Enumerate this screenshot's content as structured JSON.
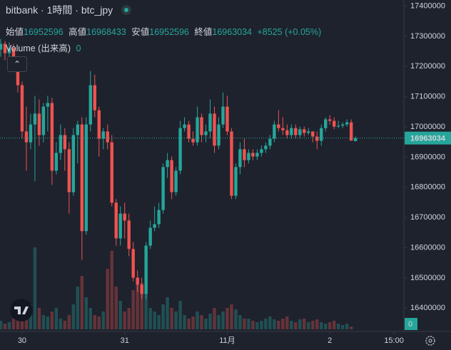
{
  "chart_data": {
    "type": "candlestick",
    "title": "bitbank · 1時間 · btc_jpy",
    "ohlc_labels": [
      "始値",
      "高値",
      "安値",
      "終値"
    ],
    "change_label": "+8525 (+0.05%)",
    "volume_title": "Volume (出来高)",
    "up_color": "#26a69a",
    "down_color": "#ef5350",
    "grid": false,
    "ylim": [
      16330000,
      17420000
    ],
    "yticks": [
      17400000,
      17300000,
      17200000,
      17100000,
      17000000,
      16900000,
      16800000,
      16700000,
      16600000,
      16500000,
      16400000
    ],
    "xticks": [
      {
        "value": 5,
        "label": "30"
      },
      {
        "value": 29,
        "label": "31"
      },
      {
        "value": 53,
        "label": "11月"
      },
      {
        "value": 77,
        "label": "2"
      },
      {
        "value": 92,
        "label": "15:00"
      }
    ],
    "open": [
      17256000,
      17275000,
      17244000,
      17261000,
      17213000,
      17138000,
      16985000,
      16949000,
      17008000,
      17044000,
      16973000,
      17067000,
      17079000,
      16855000,
      16914000,
      16973000,
      16926000,
      16784000,
      16973000,
      17008000,
      16655000,
      17008000,
      17138000,
      17055000,
      16961000,
      16985000,
      16949000,
      16749000,
      16631000,
      16713000,
      16690000,
      16596000,
      16501000,
      16478000,
      16447000,
      16607000,
      16666000,
      16678000,
      16725000,
      16867000,
      16890000,
      16784000,
      16855000,
      16996000,
      17008000,
      16961000,
      16949000,
      17032000,
      16973000,
      16985000,
      17044000,
      16938000,
      17008000,
      17067000,
      16985000,
      16772000,
      16867000,
      16926000,
      16890000,
      16914000,
      16902000,
      16914000,
      16926000,
      16938000,
      16961000,
      17008000,
      16996000,
      16989000,
      16973000,
      16996000,
      16973000,
      16992000,
      16980000,
      16985000,
      16968000,
      16954000,
      16996000,
      17025000,
      17020000,
      17001000,
      17004000,
      17008000,
      17015000,
      16952596
    ],
    "high": [
      17291000,
      17284000,
      17280000,
      17275000,
      17232000,
      17150000,
      17067000,
      17044000,
      17103000,
      17091000,
      17079000,
      17103000,
      17096000,
      16949000,
      17008000,
      16996000,
      16949000,
      16996000,
      17020000,
      17032000,
      17032000,
      17185000,
      17173000,
      17067000,
      16996000,
      17008000,
      16973000,
      16761000,
      16737000,
      16749000,
      16713000,
      16619000,
      16525000,
      16501000,
      16619000,
      16690000,
      16737000,
      16749000,
      16879000,
      16914000,
      16902000,
      16867000,
      17020000,
      17032000,
      17020000,
      16985000,
      17067000,
      17044000,
      17008000,
      17091000,
      17067000,
      17032000,
      17114000,
      17103000,
      16996000,
      16879000,
      16949000,
      16961000,
      16926000,
      16926000,
      16926000,
      16938000,
      16949000,
      16973000,
      17020000,
      17055000,
      17032000,
      17008000,
      17008000,
      17008000,
      17001000,
      17001000,
      16996000,
      16985000,
      16985000,
      17008000,
      17032000,
      17039000,
      17032000,
      17020000,
      17015000,
      17025000,
      17025000,
      16968433
    ],
    "low": [
      17232000,
      17221000,
      17209000,
      17185000,
      17114000,
      16961000,
      16855000,
      16926000,
      16820000,
      16938000,
      16949000,
      16985000,
      16808000,
      16843000,
      16890000,
      16855000,
      16713000,
      16772000,
      16879000,
      16560000,
      16643000,
      16985000,
      17032000,
      16902000,
      16926000,
      16926000,
      16737000,
      16607000,
      16607000,
      16631000,
      16572000,
      16489000,
      16454000,
      16430000,
      16430000,
      16596000,
      16655000,
      16666000,
      16713000,
      16831000,
      16761000,
      16772000,
      16843000,
      16985000,
      16949000,
      16938000,
      16938000,
      16949000,
      16949000,
      16961000,
      16914000,
      16926000,
      16996000,
      16973000,
      16761000,
      16761000,
      16843000,
      16867000,
      16879000,
      16890000,
      16890000,
      16902000,
      16914000,
      16926000,
      16949000,
      16985000,
      16973000,
      16961000,
      16961000,
      16961000,
      16961000,
      16968000,
      16973000,
      16949000,
      16926000,
      16938000,
      16985000,
      17008000,
      16992000,
      16996000,
      16996000,
      17001000,
      16954000,
      16952596
    ],
    "close": [
      17275000,
      17244000,
      17261000,
      17213000,
      17138000,
      16985000,
      16949000,
      17008000,
      17044000,
      16973000,
      17067000,
      17079000,
      16855000,
      16914000,
      16973000,
      16926000,
      16784000,
      16973000,
      17008000,
      16655000,
      17008000,
      17138000,
      17055000,
      16961000,
      16985000,
      16949000,
      16749000,
      16631000,
      16713000,
      16690000,
      16596000,
      16501000,
      16478000,
      16447000,
      16607000,
      16666000,
      16678000,
      16725000,
      16867000,
      16890000,
      16784000,
      16855000,
      16996000,
      17008000,
      16961000,
      16949000,
      17032000,
      16973000,
      16985000,
      17044000,
      16938000,
      17008000,
      17067000,
      16985000,
      16772000,
      16867000,
      16926000,
      16890000,
      16914000,
      16902000,
      16914000,
      16926000,
      16938000,
      16961000,
      17008000,
      16996000,
      16989000,
      16973000,
      16996000,
      16973000,
      16992000,
      16980000,
      16985000,
      16968000,
      16954000,
      16996000,
      17025000,
      17020000,
      17001000,
      17004000,
      17008000,
      17015000,
      16954509,
      16963034
    ],
    "volume": [
      12,
      8,
      10,
      15,
      25,
      40,
      30,
      35,
      115,
      30,
      20,
      18,
      25,
      30,
      15,
      12,
      20,
      35,
      60,
      75,
      45,
      30,
      20,
      18,
      25,
      85,
      110,
      60,
      40,
      25,
      30,
      55,
      70,
      65,
      50,
      30,
      25,
      20,
      35,
      45,
      30,
      25,
      40,
      20,
      15,
      18,
      25,
      20,
      15,
      22,
      30,
      20,
      25,
      30,
      35,
      28,
      20,
      15,
      15,
      12,
      10,
      12,
      15,
      18,
      14,
      12,
      15,
      18,
      12,
      10,
      14,
      15,
      10,
      12,
      14,
      10,
      8,
      10,
      12,
      8,
      6,
      8,
      4,
      0
    ]
  }
}
